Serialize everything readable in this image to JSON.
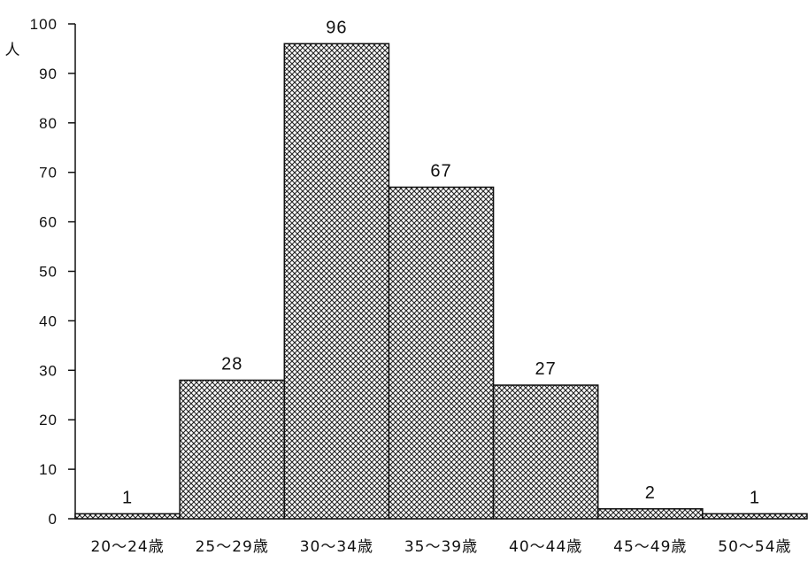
{
  "chart_data": {
    "type": "bar",
    "ylabel": "人",
    "ylim": [
      0,
      100
    ],
    "yticks": [
      0,
      10,
      20,
      30,
      40,
      50,
      60,
      70,
      80,
      90,
      100
    ],
    "categories": [
      "20～24歳",
      "25～29歳",
      "30～34歳",
      "35～39歳",
      "40～44歳",
      "45～49歳",
      "50～54歳"
    ],
    "values": [
      1,
      28,
      96,
      67,
      27,
      2,
      1
    ],
    "data_labels": [
      "1",
      "28",
      "96",
      "67",
      "27",
      "2",
      "1"
    ],
    "grid": false,
    "bar_fill": "crosshatch",
    "colors": {
      "bar_edge": "#111111",
      "hatch": "#222222",
      "background": "#ffffff"
    }
  }
}
